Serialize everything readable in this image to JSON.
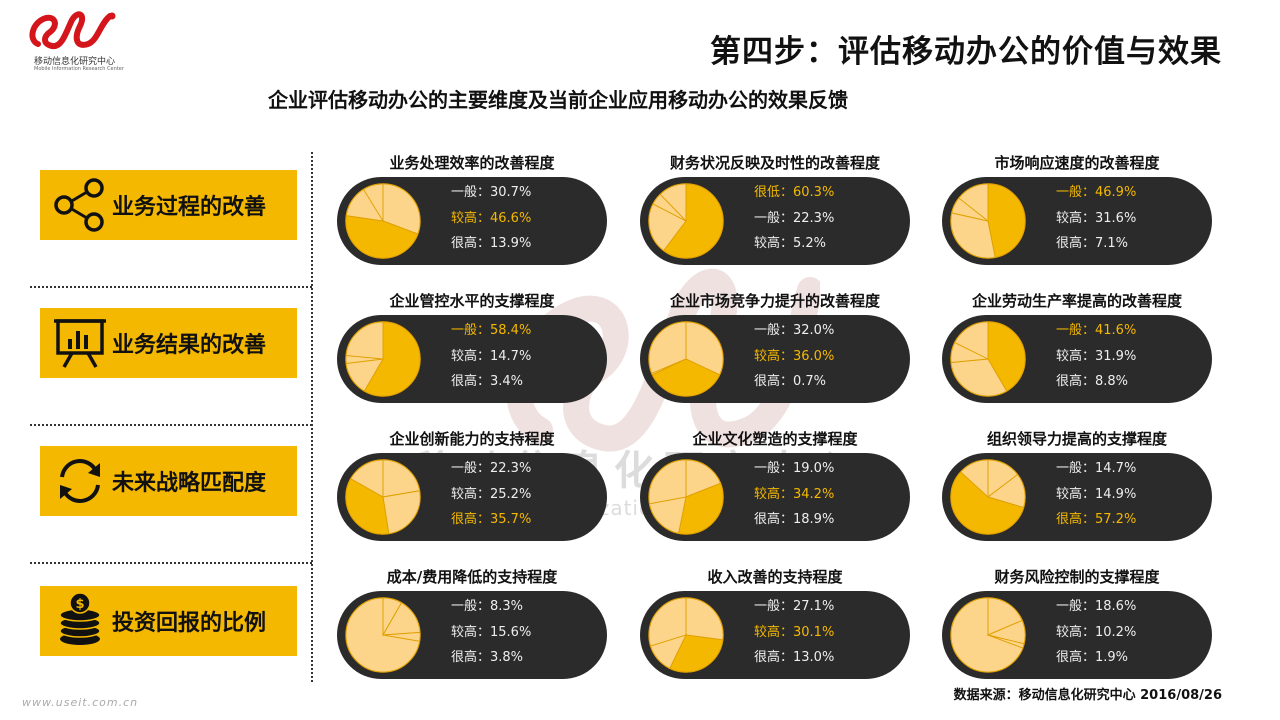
{
  "header": {
    "logo_cn": "移动信息化研究中心",
    "logo_en": "Mobile Information Research Center",
    "title": "第四步：评估移动办公的价值与效果",
    "subtitle": "企业评估移动办公的主要维度及当前企业应用移动办公的效果反馈"
  },
  "watermark": {
    "cn": "移动信息化研究中心",
    "en": "Mobile Informatization Research Center"
  },
  "dimensions": [
    {
      "label": "业务过程的改善",
      "icon": "share-network-icon"
    },
    {
      "label": "业务结果的改善",
      "icon": "presentation-chart-icon"
    },
    {
      "label": "未来战略匹配度",
      "icon": "sync-arrows-icon"
    },
    {
      "label": "投资回报的比例",
      "icon": "coin-stack-icon"
    }
  ],
  "colors": {
    "accent": "#f5b800",
    "pie_base": "#fdd58a",
    "pie_lines": "#e0a000",
    "pill": "#2b2b2b"
  },
  "chart_data": [
    {
      "type": "pie",
      "title": "业务处理效率的改善程度",
      "highlight": 1,
      "series": [
        {
          "name": "一般",
          "value": 30.7,
          "text": "一般：30.7%"
        },
        {
          "name": "较高",
          "value": 46.6,
          "text": "较高：46.6%"
        },
        {
          "name": "很高",
          "value": 13.9,
          "text": "很高：13.9%"
        }
      ]
    },
    {
      "type": "pie",
      "title": "财务状况反映及时性的改善程度",
      "highlight": 0,
      "series": [
        {
          "name": "很低",
          "value": 60.3,
          "text": "很低：60.3%"
        },
        {
          "name": "一般",
          "value": 22.3,
          "text": "一般：22.3%"
        },
        {
          "name": "较高",
          "value": 5.2,
          "text": "较高：5.2%"
        }
      ]
    },
    {
      "type": "pie",
      "title": "市场响应速度的改善程度",
      "highlight": 0,
      "series": [
        {
          "name": "一般",
          "value": 46.9,
          "text": "一般：46.9%"
        },
        {
          "name": "较高",
          "value": 31.6,
          "text": "较高：31.6%"
        },
        {
          "name": "很高",
          "value": 7.1,
          "text": "很高：7.1%"
        }
      ]
    },
    {
      "type": "pie",
      "title": "企业管控水平的支撑程度",
      "highlight": 0,
      "series": [
        {
          "name": "一般",
          "value": 58.4,
          "text": "一般：58.4%"
        },
        {
          "name": "较高",
          "value": 14.7,
          "text": "较高：14.7%"
        },
        {
          "name": "很高",
          "value": 3.4,
          "text": "很高：3.4%"
        }
      ]
    },
    {
      "type": "pie",
      "title": "企业市场竞争力提升的改善程度",
      "highlight": 1,
      "series": [
        {
          "name": "一般",
          "value": 32.0,
          "text": "一般：32.0%"
        },
        {
          "name": "较高",
          "value": 36.0,
          "text": "较高：36.0%"
        },
        {
          "name": "很高",
          "value": 0.7,
          "text": "很高：0.7%"
        }
      ]
    },
    {
      "type": "pie",
      "title": "企业劳动生产率提高的改善程度",
      "highlight": 0,
      "series": [
        {
          "name": "一般",
          "value": 41.6,
          "text": "一般：41.6%"
        },
        {
          "name": "较高",
          "value": 31.9,
          "text": "较高：31.9%"
        },
        {
          "name": "很高",
          "value": 8.8,
          "text": "很高：8.8%"
        }
      ]
    },
    {
      "type": "pie",
      "title": "企业创新能力的支持程度",
      "highlight": 2,
      "series": [
        {
          "name": "一般",
          "value": 22.3,
          "text": "一般：22.3%"
        },
        {
          "name": "较高",
          "value": 25.2,
          "text": "较高：25.2%"
        },
        {
          "name": "很高",
          "value": 35.7,
          "text": "很高：35.7%"
        }
      ]
    },
    {
      "type": "pie",
      "title": "企业文化塑造的支撑程度",
      "highlight": 1,
      "series": [
        {
          "name": "一般",
          "value": 19.0,
          "text": "一般：19.0%"
        },
        {
          "name": "较高",
          "value": 34.2,
          "text": "较高：34.2%"
        },
        {
          "name": "很高",
          "value": 18.9,
          "text": "很高：18.9%"
        }
      ]
    },
    {
      "type": "pie",
      "title": "组织领导力提高的支撑程度",
      "highlight": 2,
      "series": [
        {
          "name": "一般",
          "value": 14.7,
          "text": "一般：14.7%"
        },
        {
          "name": "较高",
          "value": 14.9,
          "text": "较高：14.9%"
        },
        {
          "name": "很高",
          "value": 57.2,
          "text": "很高：57.2%"
        }
      ]
    },
    {
      "type": "pie",
      "title": "成本/费用降低的支持程度",
      "highlight": -1,
      "series": [
        {
          "name": "一般",
          "value": 8.3,
          "text": "一般：8.3%"
        },
        {
          "name": "较高",
          "value": 15.6,
          "text": "较高：15.6%"
        },
        {
          "name": "很高",
          "value": 3.8,
          "text": "很高：3.8%"
        }
      ]
    },
    {
      "type": "pie",
      "title": "收入改善的支持程度",
      "highlight": 1,
      "series": [
        {
          "name": "一般",
          "value": 27.1,
          "text": "一般：27.1%"
        },
        {
          "name": "较高",
          "value": 30.1,
          "text": "较高：30.1%"
        },
        {
          "name": "很高",
          "value": 13.0,
          "text": "很高：13.0%"
        }
      ]
    },
    {
      "type": "pie",
      "title": "财务风险控制的支撑程度",
      "highlight": -1,
      "series": [
        {
          "name": "一般",
          "value": 18.6,
          "text": "一般：18.6%"
        },
        {
          "name": "较高",
          "value": 10.2,
          "text": "较高：10.2%"
        },
        {
          "name": "很高",
          "value": 1.9,
          "text": "很高：1.9%"
        }
      ]
    }
  ],
  "footer": {
    "url": "www.useit.com.cn",
    "source": "数据来源：移动信息化研究中心 2016/08/26"
  }
}
